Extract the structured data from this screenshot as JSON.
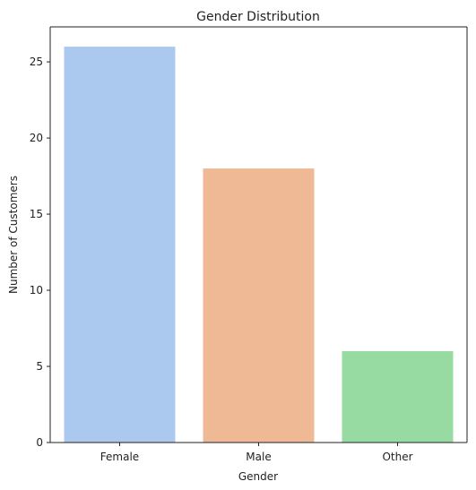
{
  "chart_data": {
    "type": "bar",
    "title": "Gender Distribution",
    "xlabel": "Gender",
    "ylabel": "Number of Customers",
    "categories": [
      "Female",
      "Male",
      "Other"
    ],
    "values": [
      26,
      18,
      6
    ],
    "colors": [
      "#abc9ee",
      "#f0b995",
      "#97dba3"
    ],
    "ylim": [
      0,
      27.3
    ],
    "yticks": [
      0,
      5,
      10,
      15,
      20,
      25
    ],
    "grid": false,
    "legend": "none"
  }
}
